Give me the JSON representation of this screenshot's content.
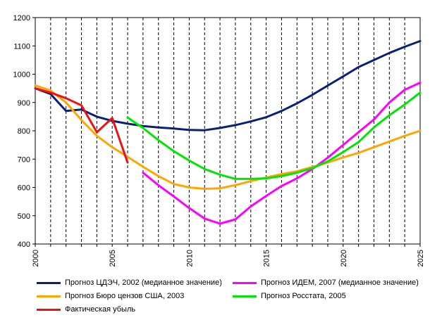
{
  "chart_data": {
    "type": "line",
    "title": "",
    "xlabel": "",
    "ylabel": "",
    "xlim": [
      2000,
      2025
    ],
    "ylim": [
      400,
      1200
    ],
    "x_ticks": [
      "2000",
      "2005",
      "2010",
      "2015",
      "2020",
      "2025"
    ],
    "y_ticks": [
      "400",
      "500",
      "600",
      "700",
      "800",
      "900",
      "1000",
      "1100",
      "1200"
    ],
    "grid": "vertical dashed lines each year",
    "legend_position": "bottom",
    "series": [
      {
        "name": "Прогноз ЦДЭЧ, 2002 (медианное значение)",
        "color": "#0a1f7a",
        "points": [
          [
            2000,
            950
          ],
          [
            2001,
            930
          ],
          [
            2002,
            870
          ],
          [
            2003,
            875
          ],
          [
            2004,
            850
          ],
          [
            2005,
            835
          ],
          [
            2006,
            825
          ],
          [
            2007,
            817
          ],
          [
            2008,
            812
          ],
          [
            2009,
            808
          ],
          [
            2010,
            803
          ],
          [
            2011,
            802
          ],
          [
            2012,
            810
          ],
          [
            2013,
            820
          ],
          [
            2014,
            833
          ],
          [
            2015,
            848
          ],
          [
            2016,
            870
          ],
          [
            2017,
            897
          ],
          [
            2018,
            927
          ],
          [
            2019,
            960
          ],
          [
            2020,
            992
          ],
          [
            2021,
            1025
          ],
          [
            2022,
            1050
          ],
          [
            2023,
            1075
          ],
          [
            2024,
            1097
          ],
          [
            2025,
            1117
          ]
        ]
      },
      {
        "name": "Прогноз ИДЕМ, 2007 (медианное значение)",
        "color": "#ff00ff",
        "points": [
          [
            2007,
            652
          ],
          [
            2008,
            608
          ],
          [
            2009,
            568
          ],
          [
            2010,
            527
          ],
          [
            2011,
            490
          ],
          [
            2012,
            472
          ],
          [
            2013,
            487
          ],
          [
            2014,
            533
          ],
          [
            2015,
            570
          ],
          [
            2016,
            605
          ],
          [
            2017,
            632
          ],
          [
            2018,
            665
          ],
          [
            2019,
            705
          ],
          [
            2020,
            750
          ],
          [
            2021,
            795
          ],
          [
            2022,
            840
          ],
          [
            2023,
            900
          ],
          [
            2024,
            945
          ],
          [
            2025,
            970
          ]
        ]
      },
      {
        "name": "Прогноз Бюро цензов США, 2003",
        "color": "#ffa500",
        "points": [
          [
            2000,
            960
          ],
          [
            2001,
            942
          ],
          [
            2002,
            900
          ],
          [
            2003,
            838
          ],
          [
            2004,
            782
          ],
          [
            2005,
            742
          ],
          [
            2006,
            708
          ],
          [
            2007,
            673
          ],
          [
            2008,
            640
          ],
          [
            2009,
            612
          ],
          [
            2010,
            600
          ],
          [
            2011,
            595
          ],
          [
            2012,
            597
          ],
          [
            2013,
            608
          ],
          [
            2014,
            622
          ],
          [
            2015,
            635
          ],
          [
            2016,
            647
          ],
          [
            2017,
            657
          ],
          [
            2018,
            672
          ],
          [
            2019,
            688
          ],
          [
            2020,
            706
          ],
          [
            2021,
            722
          ],
          [
            2022,
            742
          ],
          [
            2023,
            762
          ],
          [
            2024,
            782
          ],
          [
            2025,
            800
          ]
        ]
      },
      {
        "name": "Прогноз Росстата, 2005",
        "color": "#00e600",
        "points": [
          [
            2006,
            847
          ],
          [
            2007,
            810
          ],
          [
            2008,
            767
          ],
          [
            2009,
            728
          ],
          [
            2010,
            695
          ],
          [
            2011,
            665
          ],
          [
            2012,
            645
          ],
          [
            2013,
            630
          ],
          [
            2014,
            630
          ],
          [
            2015,
            632
          ],
          [
            2016,
            640
          ],
          [
            2017,
            652
          ],
          [
            2018,
            668
          ],
          [
            2019,
            692
          ],
          [
            2020,
            725
          ],
          [
            2021,
            760
          ],
          [
            2022,
            812
          ],
          [
            2023,
            855
          ],
          [
            2024,
            893
          ],
          [
            2025,
            935
          ]
        ]
      },
      {
        "name": "Фактическая убыль",
        "color": "#ee1111",
        "points": [
          [
            2000,
            950
          ],
          [
            2001,
            935
          ],
          [
            2002,
            915
          ],
          [
            2003,
            890
          ],
          [
            2004,
            795
          ],
          [
            2005,
            845
          ],
          [
            2006,
            688
          ]
        ]
      }
    ]
  }
}
